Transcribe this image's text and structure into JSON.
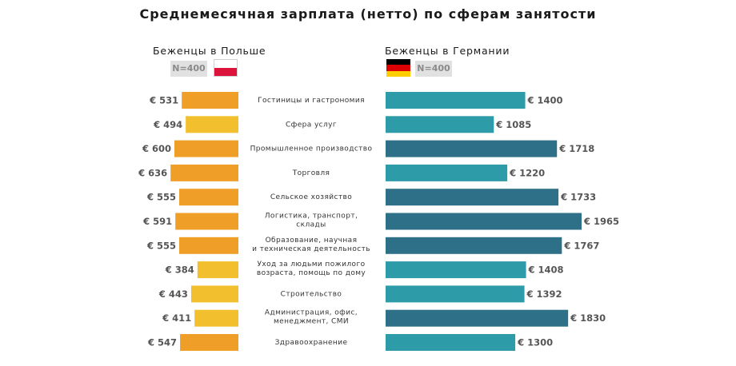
{
  "chart_data": {
    "type": "bar",
    "title": "Среднемесячная зарплата (нетто) по сферам занятости",
    "categories": [
      [
        "Гостиницы и гастрономия"
      ],
      [
        "Сфера услуг"
      ],
      [
        "Промышленное производство"
      ],
      [
        "Торговля"
      ],
      [
        "Сельское хозяйство"
      ],
      [
        "Логистика, транспорт,",
        "склады"
      ],
      [
        "Образование, научная",
        "и техническая деятельность"
      ],
      [
        "Уход за людьми пожилого",
        "возраста, помощь по дому"
      ],
      [
        "Строительство"
      ],
      [
        "Администрация, офис,",
        "менеджмент, СМИ"
      ],
      [
        "Здравоохранение"
      ]
    ],
    "currency_prefix": "€ ",
    "series": [
      {
        "name": "Беженцы в Польше",
        "sample": "N=400",
        "values": [
          531,
          494,
          600,
          636,
          555,
          591,
          555,
          384,
          443,
          411,
          547
        ],
        "colors": [
          "#ef9f27",
          "#f2c02e",
          "#ef9f27",
          "#ef9f27",
          "#ef9f27",
          "#ef9f27",
          "#ef9f27",
          "#f2c02e",
          "#f2c02e",
          "#f2c02e",
          "#ef9f27"
        ]
      },
      {
        "name": "Беженцы в Германии",
        "sample": "N=400",
        "values": [
          1400,
          1085,
          1718,
          1220,
          1733,
          1965,
          1767,
          1408,
          1392,
          1830,
          1300
        ],
        "colors": [
          "#2e9ba8",
          "#2e9ba8",
          "#2e7087",
          "#2e9ba8",
          "#2e7087",
          "#2e7087",
          "#2e7087",
          "#2e9ba8",
          "#2e9ba8",
          "#2e7087",
          "#2e9ba8"
        ]
      }
    ],
    "flag_colors": {
      "poland": [
        "#ffffff",
        "#dc143c"
      ],
      "germany": [
        "#000000",
        "#dd0000",
        "#ffce00"
      ]
    }
  }
}
